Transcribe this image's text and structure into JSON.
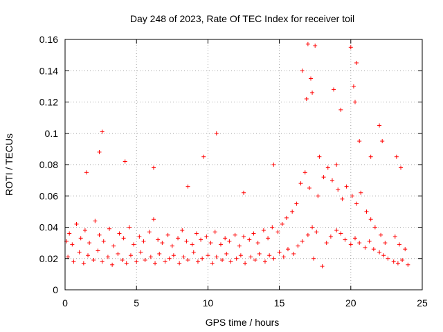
{
  "chart_data": {
    "type": "scatter",
    "title": "Day 248 of 2023, Rate Of TEC Index for receiver toil",
    "xlabel": "GPS time / hours",
    "ylabel": "ROTI / TECUs",
    "xlim": [
      0,
      25
    ],
    "ylim": [
      0,
      0.16
    ],
    "xticks": [
      0,
      5,
      10,
      15,
      20,
      25
    ],
    "yticks": [
      0,
      0.02,
      0.04,
      0.06,
      0.08,
      0.1,
      0.12,
      0.14,
      0.16
    ],
    "xtick_labels": [
      "0",
      "5",
      "10",
      "15",
      "20",
      "25"
    ],
    "ytick_labels": [
      "0",
      "0.02",
      "0.04",
      "0.06",
      "0.08",
      "0.1",
      "0.12",
      "0.14",
      "0.16"
    ],
    "grid": true,
    "marker": "+",
    "color": "#ff0000",
    "series": [
      {
        "x": [
          0.2,
          0.6,
          1.0,
          1.3,
          1.6,
          2.0,
          2.3,
          2.6,
          3.0,
          3.3,
          3.7,
          4.0,
          4.3,
          4.6,
          5.0,
          5.3,
          5.6,
          6.0,
          6.3,
          6.6,
          7.0,
          7.3,
          7.6,
          8.0,
          8.3,
          8.6,
          9.0,
          9.3,
          9.6,
          10.0,
          10.3,
          10.6,
          11.0,
          11.3,
          11.6,
          12.0,
          12.3,
          12.6,
          13.0,
          13.3,
          13.6,
          14.0,
          14.3,
          14.6,
          15.0,
          15.3,
          15.6,
          16.0,
          16.3,
          16.6,
          17.0,
          17.3,
          17.6,
          18.0,
          18.3,
          18.6,
          19.0,
          19.3,
          19.6,
          20.0,
          20.3,
          20.6,
          21.0,
          21.3,
          21.6,
          22.0,
          22.3,
          22.6,
          23.0,
          23.3,
          23.6,
          24.0,
          0.1,
          0.3,
          0.5,
          0.8,
          1.1,
          1.4,
          1.7,
          2.1,
          2.4,
          2.7,
          3.1,
          3.4,
          3.8,
          4.1,
          4.5,
          4.8,
          5.2,
          5.5,
          5.9,
          6.2,
          6.5,
          6.8,
          7.2,
          7.5,
          7.9,
          8.2,
          8.5,
          8.9,
          9.2,
          9.5,
          9.9,
          10.2,
          10.5,
          10.9,
          11.2,
          11.5,
          11.9,
          12.2,
          12.5,
          12.9,
          13.2,
          13.5,
          13.9,
          14.2,
          14.5,
          14.9,
          15.2,
          15.5,
          15.9,
          16.2,
          16.5,
          16.8,
          17.1,
          17.4,
          17.7,
          18.1,
          18.4,
          18.7,
          19.1,
          19.4,
          19.7,
          20.1,
          20.4,
          20.7,
          21.1,
          21.4,
          21.7,
          22.1,
          22.4,
          23.1,
          23.4,
          23.8,
          1.5,
          2.4,
          2.6,
          4.2,
          6.2,
          8.6,
          9.7,
          10.6,
          12.5,
          14.6,
          16.6,
          17.0,
          17.2,
          17.5,
          17.8,
          18.8,
          19.3,
          20.0,
          20.2,
          20.4,
          20.6,
          21.4,
          22.0,
          22.2,
          23.2,
          23.5,
          16.9,
          17.3,
          19.0,
          20.3
        ],
        "y": [
          0.021,
          0.018,
          0.024,
          0.017,
          0.022,
          0.019,
          0.025,
          0.018,
          0.021,
          0.016,
          0.023,
          0.019,
          0.017,
          0.022,
          0.018,
          0.024,
          0.019,
          0.021,
          0.017,
          0.023,
          0.018,
          0.02,
          0.022,
          0.017,
          0.021,
          0.019,
          0.024,
          0.018,
          0.02,
          0.022,
          0.017,
          0.021,
          0.019,
          0.023,
          0.018,
          0.02,
          0.022,
          0.017,
          0.021,
          0.019,
          0.023,
          0.018,
          0.022,
          0.02,
          0.024,
          0.021,
          0.026,
          0.023,
          0.028,
          0.031,
          0.035,
          0.04,
          0.037,
          0.015,
          0.03,
          0.034,
          0.038,
          0.036,
          0.032,
          0.029,
          0.033,
          0.03,
          0.027,
          0.031,
          0.026,
          0.024,
          0.022,
          0.02,
          0.018,
          0.017,
          0.019,
          0.016,
          0.031,
          0.036,
          0.029,
          0.042,
          0.033,
          0.038,
          0.03,
          0.044,
          0.035,
          0.031,
          0.039,
          0.028,
          0.036,
          0.033,
          0.04,
          0.029,
          0.034,
          0.031,
          0.037,
          0.045,
          0.032,
          0.03,
          0.035,
          0.028,
          0.033,
          0.038,
          0.031,
          0.029,
          0.036,
          0.032,
          0.034,
          0.03,
          0.037,
          0.029,
          0.033,
          0.031,
          0.035,
          0.028,
          0.034,
          0.032,
          0.036,
          0.03,
          0.038,
          0.033,
          0.04,
          0.037,
          0.042,
          0.046,
          0.05,
          0.055,
          0.068,
          0.075,
          0.065,
          0.02,
          0.06,
          0.072,
          0.078,
          0.07,
          0.064,
          0.058,
          0.066,
          0.06,
          0.055,
          0.062,
          0.05,
          0.045,
          0.04,
          0.035,
          0.03,
          0.034,
          0.029,
          0.026,
          0.075,
          0.088,
          0.101,
          0.082,
          0.078,
          0.066,
          0.085,
          0.1,
          0.062,
          0.08,
          0.14,
          0.157,
          0.135,
          0.156,
          0.085,
          0.128,
          0.115,
          0.155,
          0.13,
          0.145,
          0.095,
          0.085,
          0.105,
          0.095,
          0.085,
          0.078,
          0.122,
          0.126,
          0.08,
          0.12
        ]
      }
    ]
  }
}
